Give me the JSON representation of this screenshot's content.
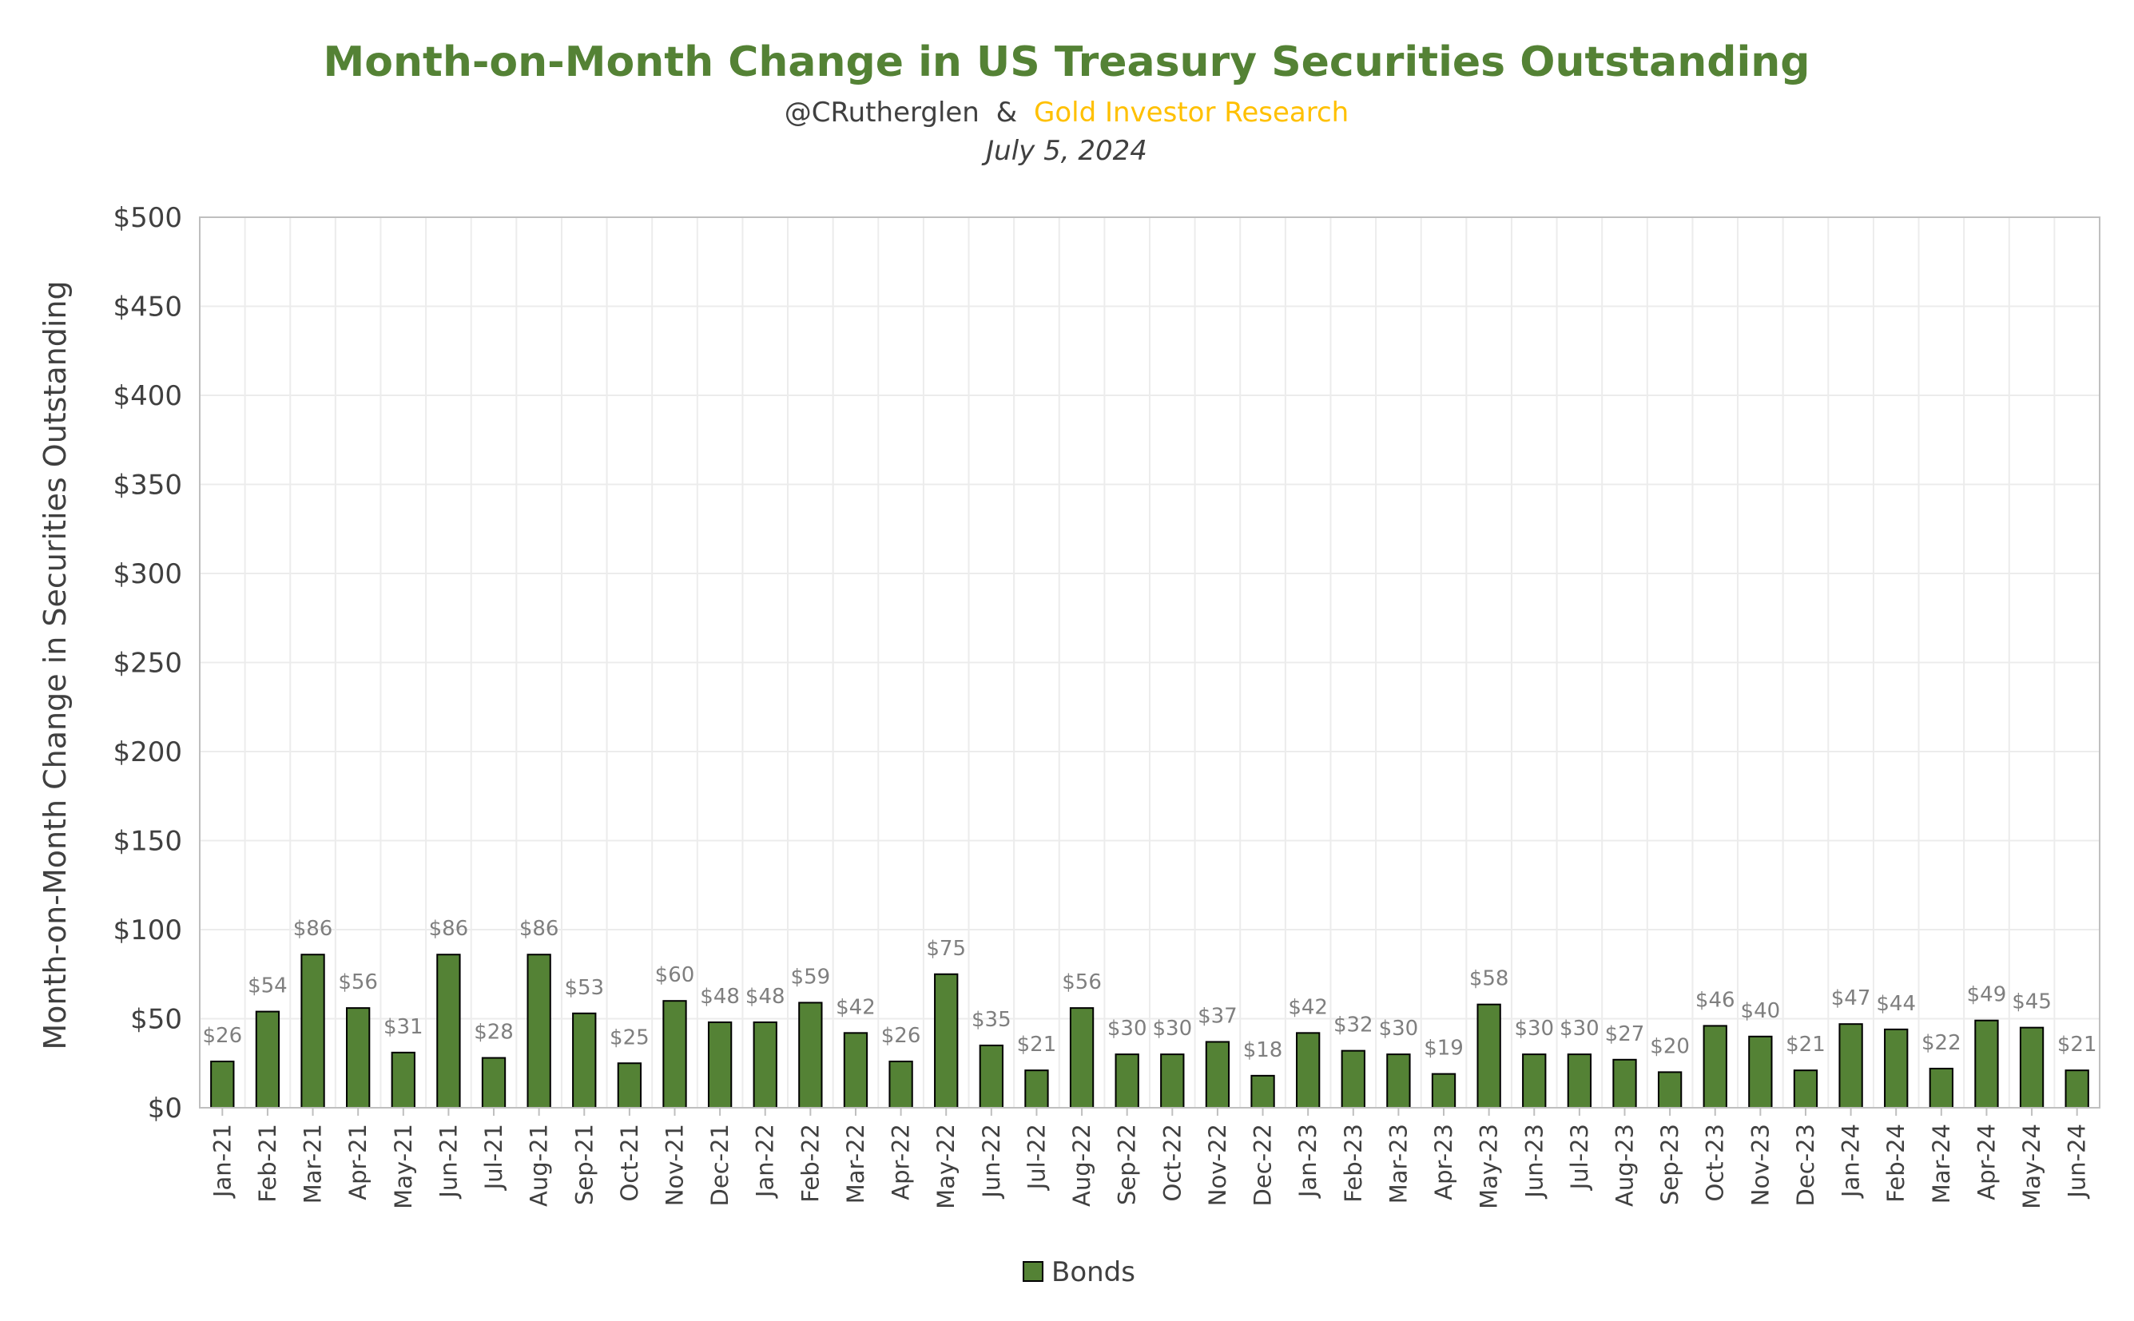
{
  "colors": {
    "title": "#548235",
    "bar": "#548235",
    "bar_stroke": "#000000",
    "subtitle": "#404040",
    "subtitle_accent": "#FFC000",
    "grid": "#ececec",
    "axis": "#bfbfbf"
  },
  "chart_data": {
    "type": "bar",
    "title": "Month-on-Month Change in US Treasury Securities Outstanding",
    "subtitle_author": "@CRutherglen",
    "subtitle_amp": "&",
    "subtitle_org": "Gold Investor Research",
    "date": "July 5, 2024",
    "ylabel": "Month-on-Month Change in Securities Outstanding",
    "xlabel": "",
    "ylim": [
      0,
      500
    ],
    "y_ticks": [
      0,
      50,
      100,
      150,
      200,
      250,
      300,
      350,
      400,
      450,
      500
    ],
    "y_tick_labels": [
      "$0",
      "$50",
      "$100",
      "$150",
      "$200",
      "$250",
      "$300",
      "$350",
      "$400",
      "$450",
      "$500"
    ],
    "grid": true,
    "legend_position": "bottom",
    "categories": [
      "Jan-21",
      "Feb-21",
      "Mar-21",
      "Apr-21",
      "May-21",
      "Jun-21",
      "Jul-21",
      "Aug-21",
      "Sep-21",
      "Oct-21",
      "Nov-21",
      "Dec-21",
      "Jan-22",
      "Feb-22",
      "Mar-22",
      "Apr-22",
      "May-22",
      "Jun-22",
      "Jul-22",
      "Aug-22",
      "Sep-22",
      "Oct-22",
      "Nov-22",
      "Dec-22",
      "Jan-23",
      "Feb-23",
      "Mar-23",
      "Apr-23",
      "May-23",
      "Jun-23",
      "Jul-23",
      "Aug-23",
      "Sep-23",
      "Oct-23",
      "Nov-23",
      "Dec-23",
      "Jan-24",
      "Feb-24",
      "Mar-24",
      "Apr-24",
      "May-24",
      "Jun-24"
    ],
    "series": [
      {
        "name": "Bonds",
        "values": [
          26,
          54,
          86,
          56,
          31,
          86,
          28,
          86,
          53,
          25,
          60,
          48,
          48,
          59,
          42,
          26,
          75,
          35,
          21,
          56,
          30,
          30,
          37,
          18,
          42,
          32,
          30,
          19,
          58,
          30,
          30,
          27,
          20,
          46,
          40,
          21,
          47,
          44,
          22,
          49,
          45,
          21
        ],
        "labels": [
          "$26",
          "$54",
          "$86",
          "$56",
          "$31",
          "$86",
          "$28",
          "$86",
          "$53",
          "$25",
          "$60",
          "$48",
          "$48",
          "$59",
          "$42",
          "$26",
          "$75",
          "$35",
          "$21",
          "$56",
          "$30",
          "$30",
          "$37",
          "$18",
          "$42",
          "$32",
          "$30",
          "$19",
          "$58",
          "$30",
          "$30",
          "$27",
          "$20",
          "$46",
          "$40",
          "$21",
          "$47",
          "$44",
          "$22",
          "$49",
          "$45",
          "$21"
        ]
      }
    ]
  }
}
